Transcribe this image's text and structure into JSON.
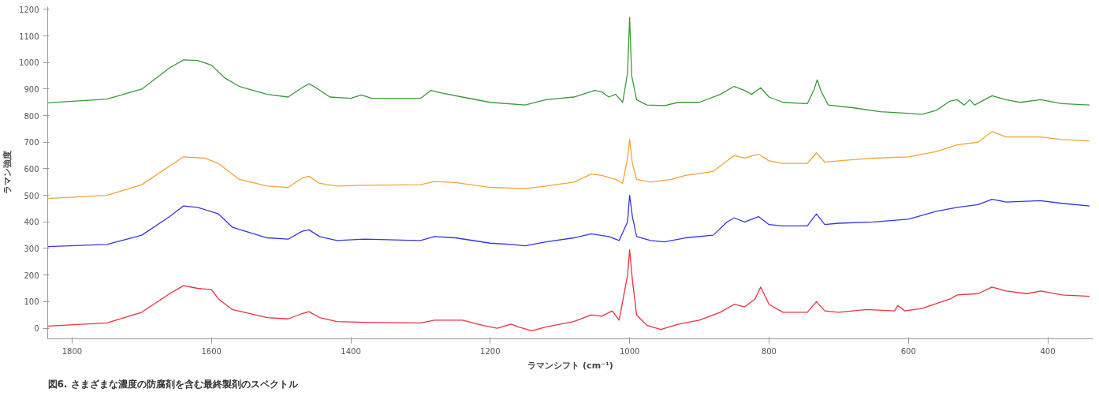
{
  "chart_data": {
    "type": "line",
    "xlabel": "ラマンシフト (cm⁻¹)",
    "ylabel": "ラマン強度",
    "annotations": [
      "図6. さまざまな濃度の防腐剤を含む最終製剤のスペクトル"
    ],
    "xlim": [
      1835,
      335
    ],
    "ylim": [
      -40,
      1210
    ],
    "xticks": [
      1800,
      1600,
      1400,
      1200,
      1000,
      800,
      600,
      400
    ],
    "yticks": [
      0,
      100,
      200,
      300,
      400,
      500,
      600,
      700,
      800,
      900,
      1000,
      1100,
      1200
    ],
    "grid": false,
    "line_style": "solid",
    "marker": "none",
    "series": [
      {
        "color": "#3a9a3a",
        "x": [
          1835,
          1750,
          1700,
          1660,
          1640,
          1620,
          1600,
          1580,
          1560,
          1520,
          1490,
          1470,
          1460,
          1450,
          1430,
          1400,
          1385,
          1370,
          1300,
          1285,
          1270,
          1240,
          1200,
          1150,
          1120,
          1080,
          1050,
          1040,
          1030,
          1020,
          1010,
          1003,
          1000,
          997,
          990,
          975,
          950,
          930,
          900,
          870,
          850,
          835,
          825,
          812,
          800,
          780,
          745,
          735,
          731,
          725,
          715,
          680,
          640,
          610,
          580,
          560,
          540,
          530,
          520,
          512,
          505,
          480,
          460,
          440,
          410,
          380,
          340
        ],
        "values": [
          848,
          862,
          900,
          980,
          1010,
          1008,
          990,
          940,
          910,
          880,
          870,
          905,
          920,
          905,
          870,
          865,
          878,
          865,
          865,
          895,
          885,
          870,
          850,
          840,
          860,
          870,
          895,
          890,
          870,
          880,
          850,
          960,
          1170,
          950,
          860,
          840,
          838,
          850,
          850,
          880,
          910,
          895,
          880,
          905,
          870,
          850,
          845,
          900,
          935,
          890,
          840,
          830,
          815,
          810,
          805,
          820,
          855,
          860,
          840,
          860,
          840,
          875,
          860,
          850,
          860,
          845,
          840
        ]
      },
      {
        "color": "#f2a535",
        "x": [
          1835,
          1750,
          1700,
          1660,
          1640,
          1610,
          1590,
          1560,
          1520,
          1490,
          1470,
          1460,
          1445,
          1420,
          1380,
          1300,
          1280,
          1250,
          1200,
          1150,
          1120,
          1080,
          1055,
          1040,
          1020,
          1010,
          1003,
          1000,
          996,
          990,
          970,
          940,
          920,
          880,
          860,
          850,
          835,
          815,
          800,
          780,
          745,
          732,
          720,
          700,
          650,
          600,
          560,
          530,
          500,
          480,
          460,
          410,
          380,
          340
        ],
        "values": [
          488,
          500,
          540,
          610,
          645,
          640,
          620,
          560,
          535,
          530,
          565,
          572,
          545,
          535,
          538,
          540,
          552,
          548,
          530,
          525,
          535,
          550,
          580,
          575,
          560,
          545,
          640,
          710,
          620,
          560,
          550,
          560,
          575,
          590,
          630,
          650,
          640,
          655,
          630,
          620,
          620,
          660,
          625,
          630,
          640,
          645,
          665,
          690,
          700,
          740,
          720,
          720,
          710,
          705
        ]
      },
      {
        "color": "#3535e0",
        "x": [
          1835,
          1750,
          1700,
          1660,
          1640,
          1620,
          1590,
          1570,
          1520,
          1490,
          1470,
          1460,
          1445,
          1420,
          1380,
          1300,
          1280,
          1250,
          1200,
          1170,
          1150,
          1120,
          1080,
          1055,
          1030,
          1015,
          1003,
          1000,
          996,
          990,
          970,
          950,
          920,
          880,
          860,
          850,
          835,
          815,
          800,
          780,
          745,
          732,
          720,
          700,
          650,
          600,
          560,
          530,
          500,
          480,
          460,
          410,
          380,
          340
        ],
        "values": [
          307,
          315,
          350,
          420,
          460,
          455,
          430,
          380,
          340,
          335,
          365,
          370,
          345,
          330,
          335,
          330,
          345,
          340,
          320,
          315,
          310,
          325,
          340,
          355,
          345,
          330,
          400,
          500,
          420,
          345,
          330,
          325,
          340,
          350,
          400,
          415,
          400,
          420,
          390,
          385,
          385,
          430,
          390,
          395,
          400,
          410,
          440,
          455,
          465,
          485,
          475,
          480,
          470,
          460
        ]
      },
      {
        "color": "#e8323c",
        "x": [
          1835,
          1750,
          1700,
          1660,
          1640,
          1620,
          1600,
          1590,
          1570,
          1520,
          1490,
          1470,
          1460,
          1445,
          1420,
          1380,
          1300,
          1280,
          1240,
          1210,
          1190,
          1170,
          1160,
          1140,
          1120,
          1080,
          1055,
          1040,
          1025,
          1015,
          1003,
          1000,
          996,
          990,
          975,
          955,
          930,
          900,
          870,
          850,
          835,
          820,
          812,
          800,
          780,
          745,
          732,
          720,
          700,
          660,
          620,
          615,
          605,
          580,
          540,
          530,
          500,
          480,
          460,
          430,
          410,
          380,
          340
        ],
        "values": [
          8,
          20,
          60,
          130,
          160,
          150,
          145,
          110,
          70,
          40,
          35,
          55,
          62,
          40,
          25,
          22,
          20,
          30,
          30,
          10,
          0,
          15,
          5,
          -10,
          5,
          25,
          50,
          45,
          65,
          30,
          200,
          295,
          180,
          50,
          10,
          -5,
          15,
          30,
          60,
          90,
          80,
          110,
          155,
          90,
          60,
          60,
          100,
          65,
          60,
          70,
          65,
          85,
          65,
          75,
          110,
          125,
          130,
          155,
          140,
          130,
          140,
          125,
          120
        ]
      }
    ]
  }
}
